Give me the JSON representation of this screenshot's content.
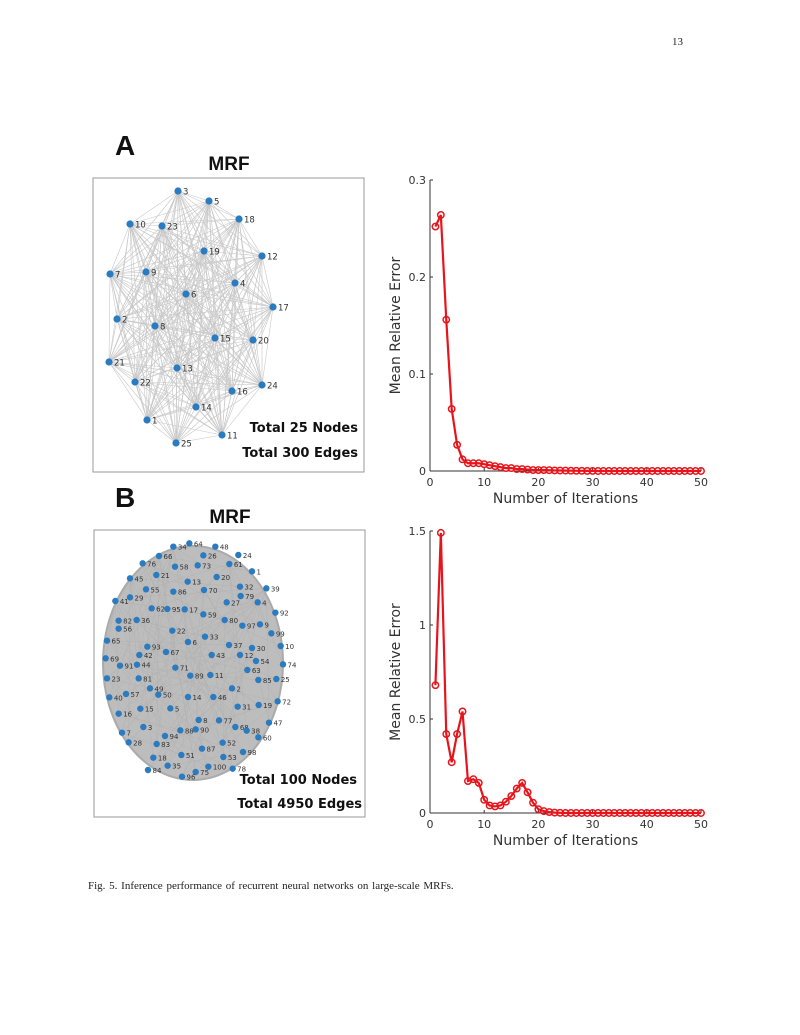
{
  "page_number": "13",
  "caption": "Fig. 5.  Inference performance of recurrent neural networks on large-scale MRFs.",
  "colors": {
    "node": "#2a7bbf",
    "edge": "#c8c8c8",
    "series": "#e8141b",
    "axis": "#333333"
  },
  "panels": [
    {
      "letter": "A",
      "graph": {
        "title": "MRF",
        "node_labels": [
          "3",
          "5",
          "18",
          "10",
          "23",
          "19",
          "12",
          "7",
          "9",
          "4",
          "6",
          "17",
          "2",
          "8",
          "15",
          "20",
          "21",
          "13",
          "22",
          "24",
          "16",
          "14",
          "1",
          "11",
          "25"
        ],
        "stats": [
          "Total 25 Nodes",
          "Total 300 Edges"
        ],
        "fully_connected": true
      }
    },
    {
      "letter": "B",
      "graph": {
        "title": "MRF",
        "node_labels": [
          "34",
          "64",
          "48",
          "66",
          "26",
          "24",
          "76",
          "58",
          "73",
          "61",
          "1",
          "21",
          "45",
          "13",
          "20",
          "39",
          "55",
          "86",
          "70",
          "32",
          "79",
          "41",
          "29",
          "27",
          "4",
          "62",
          "95",
          "17",
          "59",
          "92",
          "36",
          "82",
          "56",
          "80",
          "97",
          "9",
          "22",
          "33",
          "99",
          "65",
          "6",
          "10",
          "93",
          "42",
          "67",
          "43",
          "37",
          "12",
          "30",
          "54",
          "69",
          "91",
          "44",
          "74",
          "71",
          "89",
          "11",
          "63",
          "85",
          "25",
          "23",
          "81",
          "49",
          "2",
          "57",
          "40",
          "50",
          "14",
          "46",
          "72",
          "19",
          "31",
          "16",
          "15",
          "5",
          "8",
          "77",
          "47",
          "3",
          "88",
          "90",
          "68",
          "38",
          "60",
          "7",
          "28",
          "94",
          "83",
          "52",
          "87",
          "98",
          "51",
          "18",
          "35",
          "100",
          "53",
          "78",
          "84",
          "75",
          "96"
        ],
        "stats": [
          "Total 100 Nodes",
          "Total 4950 Edges"
        ],
        "fully_connected": true
      }
    }
  ],
  "chart_data": [
    {
      "type": "line",
      "xlabel": "Number of Iterations",
      "ylabel": "Mean Relative Error",
      "xlim": [
        0,
        50
      ],
      "ylim": [
        0,
        0.3
      ],
      "xticks": [
        "0",
        "10",
        "20",
        "30",
        "40",
        "50"
      ],
      "yticks": [
        "0",
        "0.1",
        "0.2",
        "0.3"
      ],
      "grid": false,
      "marker": "circle",
      "x": [
        1,
        2,
        3,
        4,
        5,
        6,
        7,
        8,
        9,
        10,
        11,
        12,
        13,
        14,
        15,
        16,
        17,
        18,
        19,
        20,
        21,
        22,
        23,
        24,
        25,
        26,
        27,
        28,
        29,
        30,
        31,
        32,
        33,
        34,
        35,
        36,
        37,
        38,
        39,
        40,
        41,
        42,
        43,
        44,
        45,
        46,
        47,
        48,
        49,
        50
      ],
      "values": [
        0.252,
        0.264,
        0.156,
        0.064,
        0.027,
        0.012,
        0.008,
        0.008,
        0.008,
        0.007,
        0.006,
        0.005,
        0.004,
        0.003,
        0.003,
        0.002,
        0.002,
        0.0015,
        0.001,
        0.001,
        0.001,
        0.0008,
        0.0006,
        0.0005,
        0.0004,
        0.0003,
        0.0002,
        0.0002,
        0.0001,
        0.0001,
        0,
        0,
        0,
        0,
        0,
        0,
        0,
        0,
        0,
        0,
        0,
        0,
        0,
        0,
        0,
        0,
        0,
        0,
        0,
        0
      ]
    },
    {
      "type": "line",
      "xlabel": "Number of Iterations",
      "ylabel": "Mean Relative Error",
      "xlim": [
        0,
        50
      ],
      "ylim": [
        0,
        1.5
      ],
      "xticks": [
        "0",
        "10",
        "20",
        "30",
        "40",
        "50"
      ],
      "yticks": [
        "0",
        "0.5",
        "1",
        "1.5"
      ],
      "grid": false,
      "marker": "circle",
      "x": [
        1,
        2,
        3,
        4,
        5,
        6,
        7,
        8,
        9,
        10,
        11,
        12,
        13,
        14,
        15,
        16,
        17,
        18,
        19,
        20,
        21,
        22,
        23,
        24,
        25,
        26,
        27,
        28,
        29,
        30,
        31,
        32,
        33,
        34,
        35,
        36,
        37,
        38,
        39,
        40,
        41,
        42,
        43,
        44,
        45,
        46,
        47,
        48,
        49,
        50
      ],
      "values": [
        0.68,
        1.49,
        0.42,
        0.27,
        0.42,
        0.54,
        0.17,
        0.18,
        0.16,
        0.07,
        0.04,
        0.035,
        0.04,
        0.06,
        0.09,
        0.13,
        0.16,
        0.11,
        0.055,
        0.02,
        0.01,
        0.005,
        0.002,
        0.001,
        0,
        0,
        0,
        0,
        0,
        0,
        0,
        0,
        0,
        0,
        0,
        0,
        0,
        0,
        0,
        0,
        0,
        0,
        0,
        0,
        0,
        0,
        0,
        0,
        0,
        0
      ]
    }
  ]
}
